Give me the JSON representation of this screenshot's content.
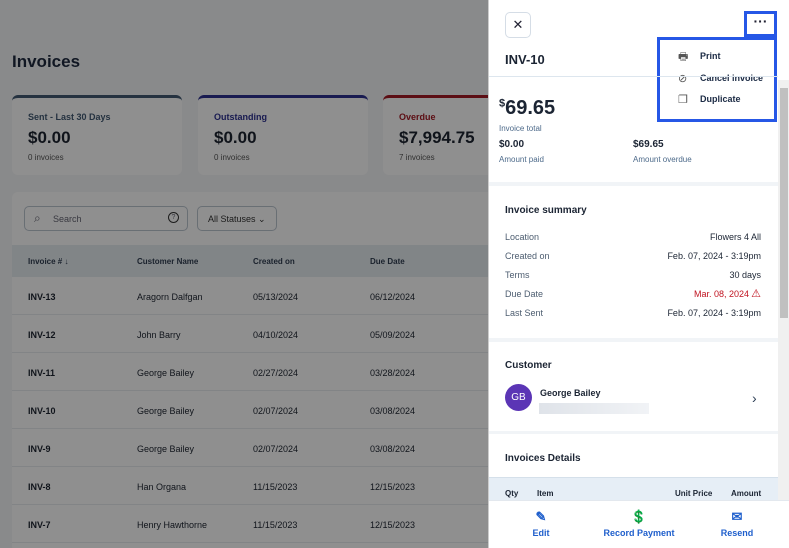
{
  "page": {
    "title": "Invoices"
  },
  "cards": [
    {
      "label": "Sent - Last 30 Days",
      "amount": "$0.00",
      "count": "0 invoices",
      "color": "#3c5a7a"
    },
    {
      "label": "Outstanding",
      "amount": "$0.00",
      "count": "0 invoices",
      "color": "#2a2fa8"
    },
    {
      "label": "Overdue",
      "amount": "$7,994.75",
      "count": "7 invoices",
      "color": "#c0121f"
    }
  ],
  "filters": {
    "search_placeholder": "Search",
    "status": "All Statuses"
  },
  "table": {
    "headers": [
      "Invoice # ↓",
      "Customer Name",
      "Created on",
      "Due Date"
    ],
    "rows": [
      [
        "INV-13",
        "Aragorn Dalfgan",
        "05/13/2024",
        "06/12/2024"
      ],
      [
        "INV-12",
        "John Barry",
        "04/10/2024",
        "05/09/2024"
      ],
      [
        "INV-11",
        "George Bailey",
        "02/27/2024",
        "03/28/2024"
      ],
      [
        "INV-10",
        "George Bailey",
        "02/07/2024",
        "03/08/2024"
      ],
      [
        "INV-9",
        "George Bailey",
        "02/07/2024",
        "03/08/2024"
      ],
      [
        "INV-8",
        "Han Organa",
        "11/15/2023",
        "12/15/2023"
      ],
      [
        "INV-7",
        "Henry Hawthorne",
        "11/15/2023",
        "12/15/2023"
      ]
    ]
  },
  "panel": {
    "invoice_id": "INV-10",
    "menu": [
      "Print",
      "Cancel invoice",
      "Duplicate"
    ],
    "total_currency": "$",
    "total": "69.65",
    "total_label": "Invoice total",
    "paid": "$0.00",
    "paid_label": "Amount paid",
    "overdue": "$69.65",
    "overdue_label": "Amount overdue",
    "summary_title": "Invoice summary",
    "summary": [
      {
        "label": "Location",
        "value": "Flowers 4 All"
      },
      {
        "label": "Created on",
        "value": "Feb. 07, 2024 - 3:19pm"
      },
      {
        "label": "Terms",
        "value": "30 days"
      },
      {
        "label": "Due Date",
        "value": "Mar. 08, 2024"
      },
      {
        "label": "Last Sent",
        "value": "Feb. 07, 2024 - 3:19pm"
      }
    ],
    "customer_title": "Customer",
    "customer_initials": "GB",
    "customer_name": "George Bailey",
    "avatar_color": "#5b35b5",
    "details_title": "Invoices Details",
    "details_headers": [
      "Qty",
      "Item",
      "Unit Price",
      "Amount"
    ],
    "actions": [
      "Edit",
      "Record Payment",
      "Resend"
    ],
    "accent": "#1f5fcc",
    "danger": "#c0121f"
  }
}
